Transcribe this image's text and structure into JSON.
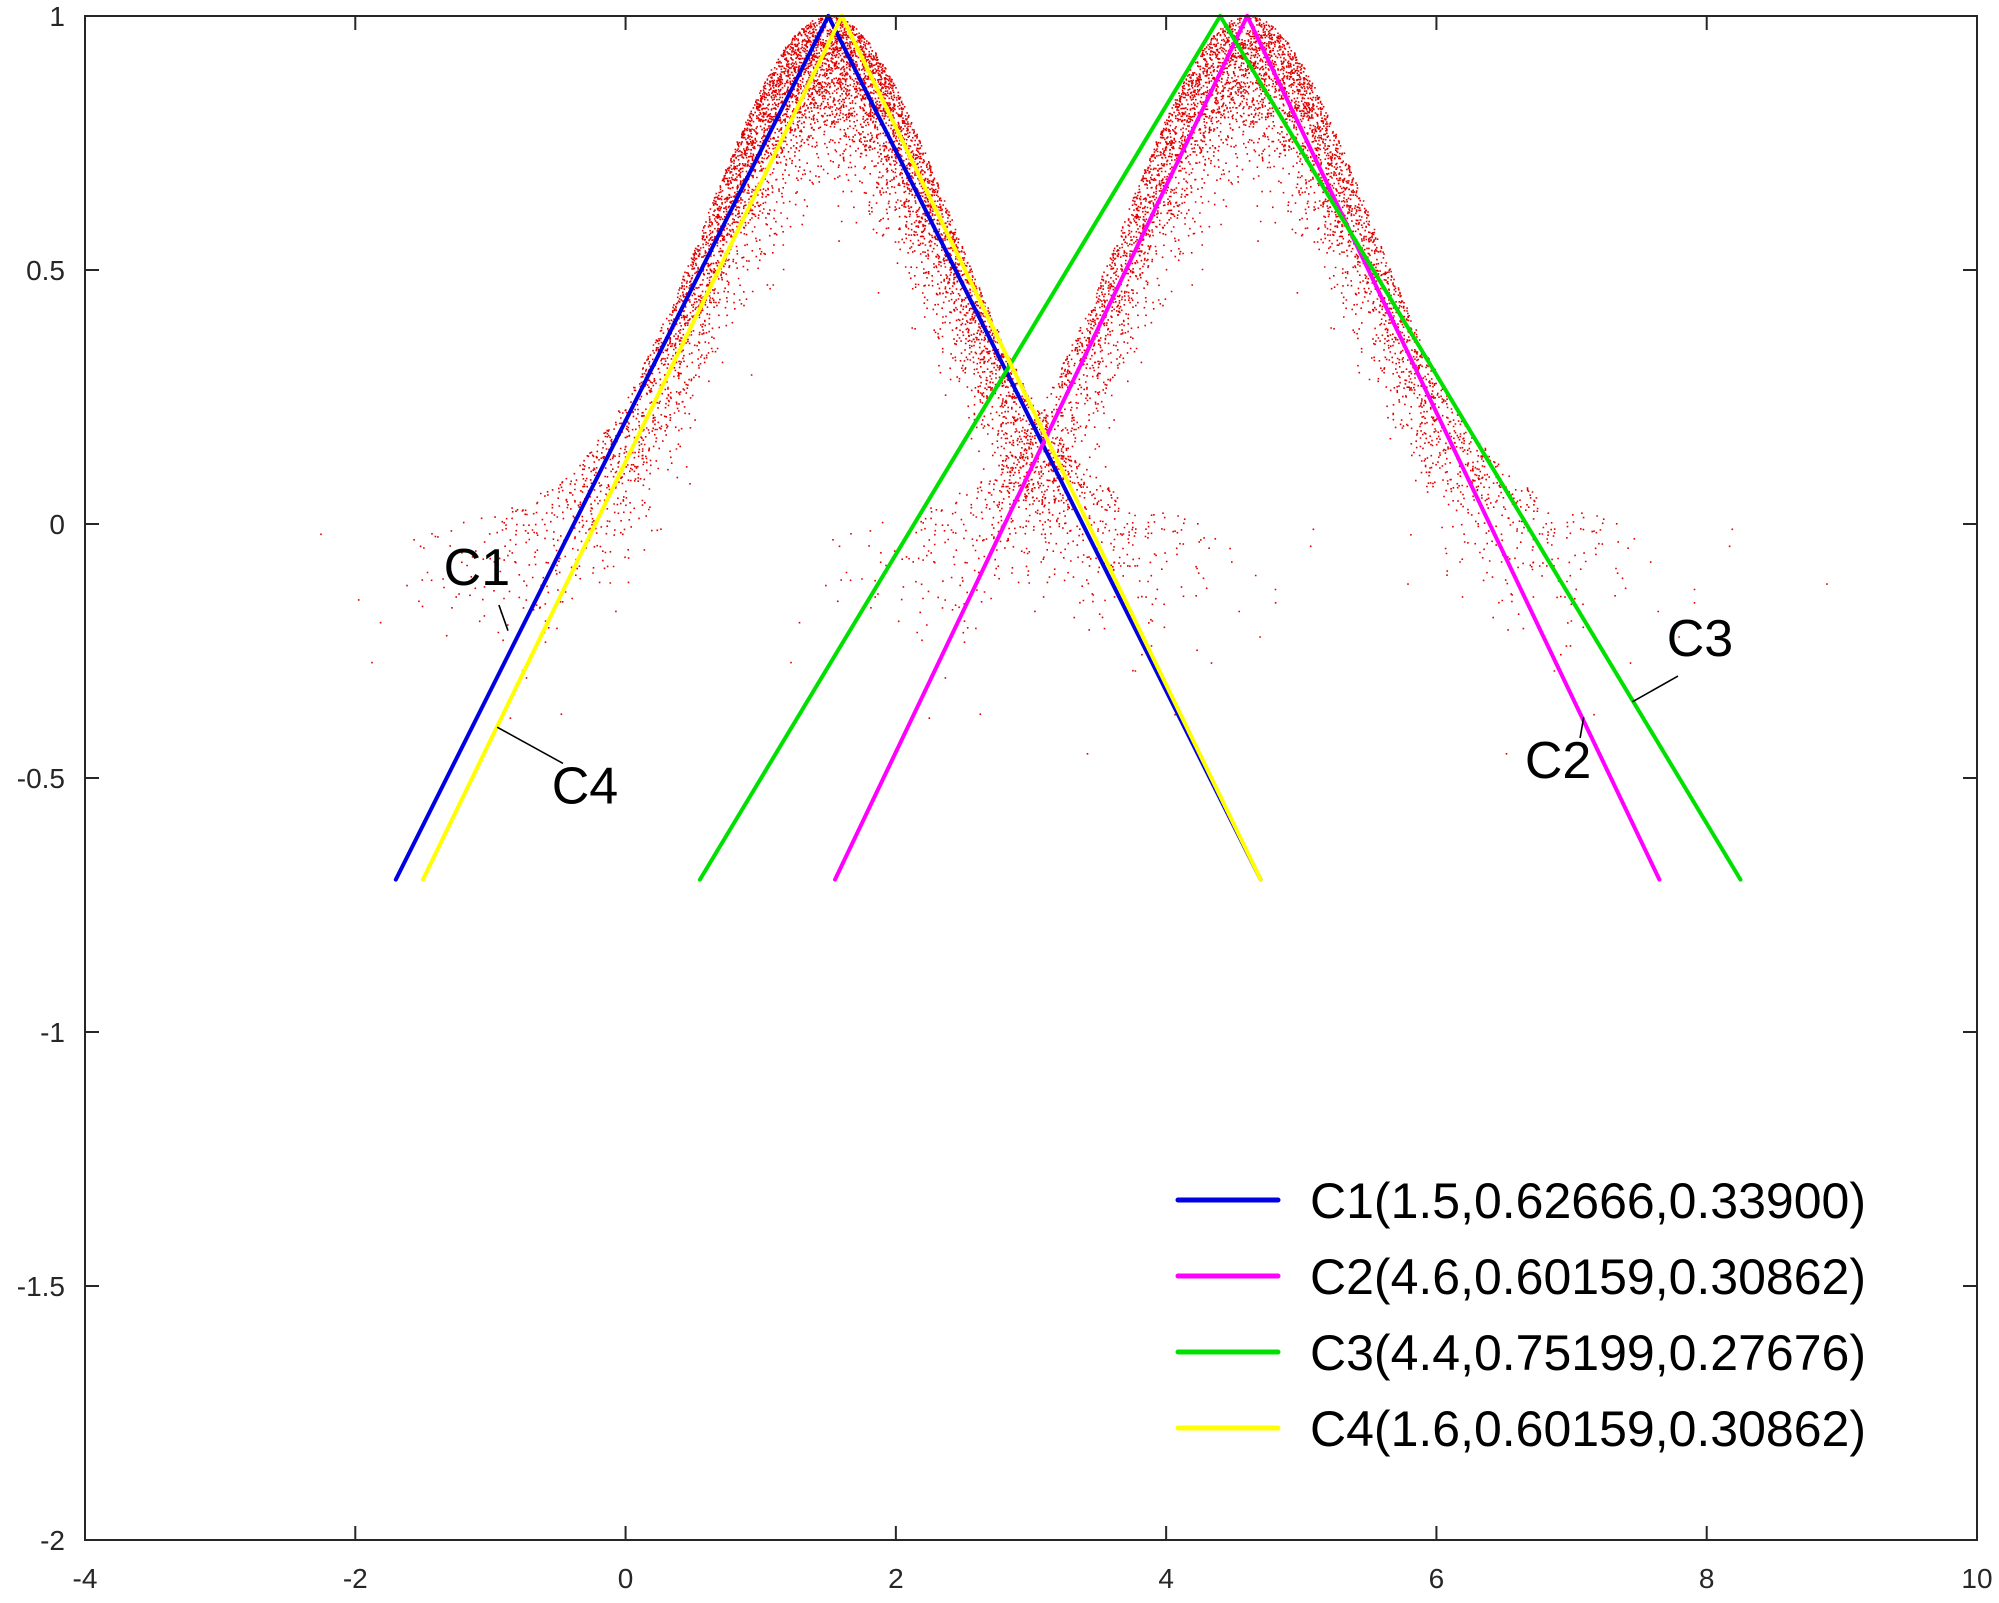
{
  "chart_data": {
    "type": "line",
    "xlim": [
      -4,
      10
    ],
    "ylim": [
      -2,
      1
    ],
    "grid": false,
    "legend_position": "bottom-right",
    "x_ticks": [
      -4,
      -2,
      0,
      2,
      4,
      6,
      8,
      10
    ],
    "y_ticks": [
      -2,
      -1.5,
      -1,
      -0.5,
      0,
      0.5,
      1
    ],
    "x_tick_labels": [
      "-4",
      "-2",
      "0",
      "2",
      "4",
      "6",
      "8",
      "10"
    ],
    "y_tick_labels": [
      "-2",
      "-1.5",
      "-1",
      "-0.5",
      "0",
      "0.5",
      "1"
    ],
    "scatter": {
      "color": "#e00000",
      "clusters": [
        {
          "center": 1.5,
          "approx_points": 11000
        },
        {
          "center": 4.6,
          "approx_points": 11000
        }
      ]
    },
    "series": [
      {
        "name": "C1(1.5,0.62666,0.33900)",
        "label": "C1",
        "color": "#0000e0",
        "x": [
          -1.7,
          1.5,
          4.7
        ],
        "y": [
          -0.7,
          1,
          -0.7
        ]
      },
      {
        "name": "C2(4.6,0.60159,0.30862)",
        "label": "C2",
        "color": "#ff00ff",
        "x": [
          1.55,
          4.6,
          7.65
        ],
        "y": [
          -0.7,
          1,
          -0.7
        ]
      },
      {
        "name": "C3(4.4,0.75199,0.27676)",
        "label": "C3",
        "color": "#00e000",
        "x": [
          0.55,
          4.4,
          8.25
        ],
        "y": [
          -0.7,
          1,
          -0.7
        ]
      },
      {
        "name": "C4(1.6,0.60159,0.30862)",
        "label": "C4",
        "color": "#ffff00",
        "x": [
          -1.5,
          1.6,
          4.7
        ],
        "y": [
          -0.7,
          1,
          -0.7
        ]
      }
    ],
    "annotations": [
      {
        "text": "C1",
        "at": [
          -0.87,
          -0.21
        ],
        "text_pos": [
          -1.1,
          -0.12
        ],
        "anchor": "middle"
      },
      {
        "text": "C2",
        "at": [
          7.09,
          -0.38
        ],
        "text_pos": [
          6.9,
          -0.5
        ],
        "anchor": "middle"
      },
      {
        "text": "C3",
        "at": [
          7.45,
          -0.35
        ],
        "text_pos": [
          7.95,
          -0.26
        ],
        "anchor": "middle"
      },
      {
        "text": "C4",
        "at": [
          -0.95,
          -0.4
        ],
        "text_pos": [
          -0.3,
          -0.55
        ],
        "anchor": "middle"
      }
    ]
  }
}
